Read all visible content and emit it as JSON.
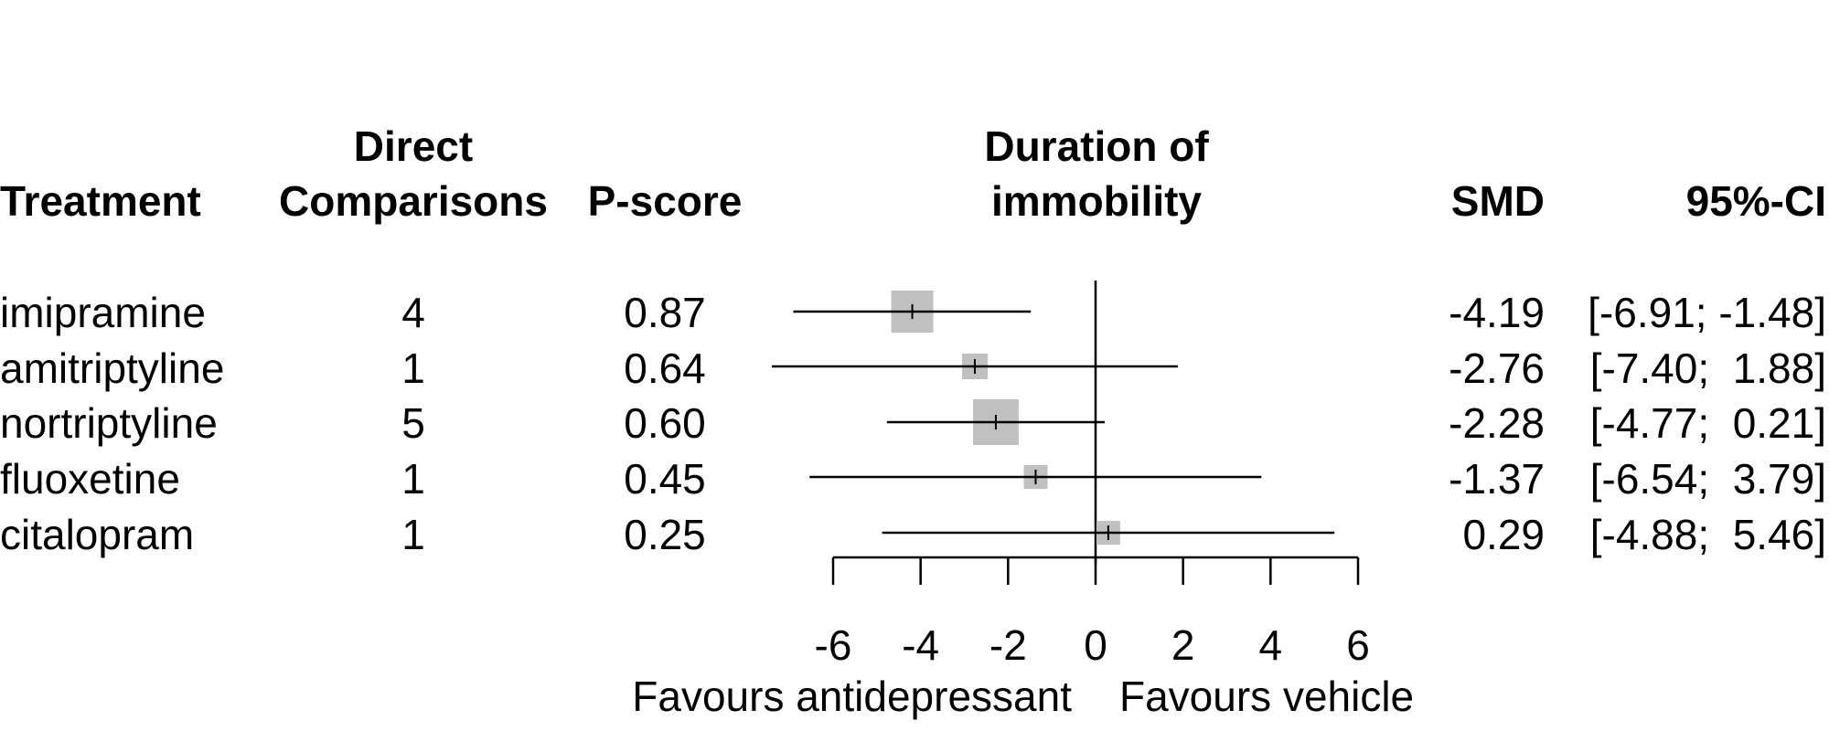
{
  "headers": {
    "treatment": "Treatment",
    "direct_line1": "Direct",
    "direct_line2": "Comparisons",
    "pscore": "P-score",
    "outcome_line1": "Duration of",
    "outcome_line2": "immobility",
    "smd": "SMD",
    "ci": "95%-CI"
  },
  "rows": [
    {
      "treatment": "imipramine",
      "direct": "4",
      "pscore": "0.87",
      "smd_text": "-4.19",
      "ci_text": "[-6.91; -1.48]"
    },
    {
      "treatment": "amitriptyline",
      "direct": "1",
      "pscore": "0.64",
      "smd_text": "-2.76",
      "ci_text": "[-7.40;  1.88]"
    },
    {
      "treatment": "nortriptyline",
      "direct": "5",
      "pscore": "0.60",
      "smd_text": "-2.28",
      "ci_text": "[-4.77;  0.21]"
    },
    {
      "treatment": "fluoxetine",
      "direct": "1",
      "pscore": "0.45",
      "smd_text": "-1.37",
      "ci_text": "[-6.54;  3.79]"
    },
    {
      "treatment": "citalopram",
      "direct": "1",
      "pscore": "0.25",
      "smd_text": "0.29",
      "ci_text": "[-4.88;  5.46]"
    }
  ],
  "axis": {
    "ticks": [
      "-6",
      "-4",
      "-2",
      "0",
      "2",
      "4",
      "6"
    ],
    "left_label": "Favours antidepressant",
    "right_label": "Favours vehicle"
  },
  "colors": {
    "square": "#c0c0c0",
    "line": "#000000"
  },
  "chart_data": {
    "type": "forest",
    "xlim": [
      -6,
      6
    ],
    "reference_line": 0,
    "x_ticks": [
      -6,
      -4,
      -2,
      0,
      2,
      4,
      6
    ],
    "grid": false,
    "series": [
      {
        "name": "imipramine",
        "estimate": -4.19,
        "lower": -6.91,
        "upper": -1.48,
        "direct_comparisons": 4,
        "p_score": 0.87,
        "weight_rank": 2
      },
      {
        "name": "amitriptyline",
        "estimate": -2.76,
        "lower": -7.4,
        "upper": 1.88,
        "direct_comparisons": 1,
        "p_score": 0.64,
        "weight_rank": 3
      },
      {
        "name": "nortriptyline",
        "estimate": -2.28,
        "lower": -4.77,
        "upper": 0.21,
        "direct_comparisons": 5,
        "p_score": 0.6,
        "weight_rank": 1
      },
      {
        "name": "fluoxetine",
        "estimate": -1.37,
        "lower": -6.54,
        "upper": 3.79,
        "direct_comparisons": 1,
        "p_score": 0.45,
        "weight_rank": 4
      },
      {
        "name": "citalopram",
        "estimate": 0.29,
        "lower": -4.88,
        "upper": 5.46,
        "direct_comparisons": 1,
        "p_score": 0.25,
        "weight_rank": 5
      }
    ]
  }
}
